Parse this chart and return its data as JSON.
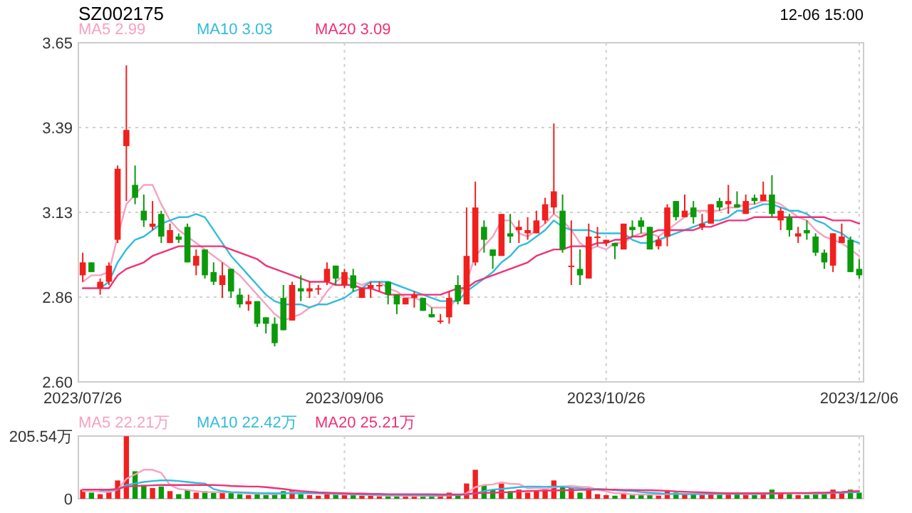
{
  "chart_data": [
    {
      "type": "candlestick",
      "title": "SZ002175",
      "annotations": [
        "12-06 15:00"
      ],
      "categories": [
        "2023/07/26",
        null,
        null,
        null,
        null,
        null,
        null,
        null,
        null,
        null,
        null,
        null,
        null,
        null,
        null,
        null,
        null,
        null,
        null,
        null,
        null,
        null,
        null,
        null,
        null,
        null,
        null,
        null,
        null,
        null,
        "2023/09/06",
        null,
        null,
        null,
        null,
        null,
        null,
        null,
        null,
        null,
        null,
        null,
        null,
        null,
        null,
        null,
        null,
        null,
        null,
        null,
        null,
        null,
        null,
        null,
        null,
        null,
        null,
        null,
        null,
        null,
        "2023/10/26",
        null,
        null,
        null,
        null,
        null,
        null,
        null,
        null,
        null,
        null,
        null,
        null,
        null,
        null,
        null,
        null,
        null,
        null,
        null,
        null,
        null,
        null,
        null,
        null,
        null,
        null,
        null,
        null,
        "2023/12/06"
      ],
      "ohlc": [
        [
          2.93,
          3.0,
          2.91,
          2.97
        ],
        [
          2.97,
          2.97,
          2.94,
          2.94
        ],
        [
          2.89,
          2.92,
          2.87,
          2.91
        ],
        [
          2.91,
          2.97,
          2.9,
          2.96
        ],
        [
          3.04,
          3.27,
          3.03,
          3.26
        ],
        [
          3.33,
          3.58,
          3.16,
          3.38
        ],
        [
          3.21,
          3.27,
          3.15,
          3.17
        ],
        [
          3.13,
          3.18,
          3.08,
          3.1
        ],
        [
          3.08,
          3.16,
          3.07,
          3.09
        ],
        [
          3.12,
          3.13,
          3.03,
          3.05
        ],
        [
          3.03,
          3.09,
          3.03,
          3.07
        ],
        [
          3.05,
          3.06,
          3.03,
          3.04
        ],
        [
          3.08,
          3.09,
          2.97,
          2.97
        ],
        [
          2.96,
          3.01,
          2.93,
          2.99
        ],
        [
          3.01,
          3.01,
          2.92,
          2.93
        ],
        [
          2.94,
          2.97,
          2.9,
          2.91
        ],
        [
          2.9,
          2.97,
          2.86,
          2.93
        ],
        [
          2.95,
          2.95,
          2.86,
          2.88
        ],
        [
          2.87,
          2.89,
          2.83,
          2.84
        ],
        [
          2.84,
          2.87,
          2.82,
          2.85
        ],
        [
          2.85,
          2.85,
          2.77,
          2.78
        ],
        [
          2.8,
          2.8,
          2.75,
          2.78
        ],
        [
          2.78,
          2.8,
          2.71,
          2.72
        ],
        [
          2.86,
          2.9,
          2.76,
          2.76
        ],
        [
          2.79,
          2.91,
          2.79,
          2.9
        ],
        [
          2.89,
          2.93,
          2.85,
          2.88
        ],
        [
          2.88,
          2.91,
          2.86,
          2.89
        ],
        [
          2.89,
          2.9,
          2.87,
          2.89
        ],
        [
          2.91,
          2.97,
          2.9,
          2.95
        ],
        [
          2.96,
          2.96,
          2.9,
          2.92
        ],
        [
          2.9,
          2.95,
          2.89,
          2.94
        ],
        [
          2.93,
          2.95,
          2.88,
          2.89
        ],
        [
          2.86,
          2.89,
          2.86,
          2.89
        ],
        [
          2.89,
          2.91,
          2.86,
          2.9
        ],
        [
          2.9,
          2.91,
          2.88,
          2.9
        ],
        [
          2.91,
          2.91,
          2.84,
          2.87
        ],
        [
          2.87,
          2.87,
          2.81,
          2.84
        ],
        [
          2.84,
          2.86,
          2.84,
          2.86
        ],
        [
          2.86,
          2.88,
          2.83,
          2.87
        ],
        [
          2.86,
          2.86,
          2.82,
          2.82
        ],
        [
          2.81,
          2.83,
          2.8,
          2.8
        ],
        [
          2.79,
          2.81,
          2.78,
          2.79
        ],
        [
          2.8,
          2.88,
          2.78,
          2.86
        ],
        [
          2.9,
          2.93,
          2.84,
          2.85
        ],
        [
          2.84,
          3.14,
          2.84,
          2.99
        ],
        [
          2.97,
          3.22,
          2.96,
          3.14
        ],
        [
          3.08,
          3.1,
          3.0,
          3.04
        ],
        [
          3.01,
          3.01,
          2.95,
          2.99
        ],
        [
          2.99,
          3.12,
          2.99,
          3.12
        ],
        [
          3.06,
          3.12,
          3.03,
          3.05
        ],
        [
          3.07,
          3.1,
          3.03,
          3.08
        ],
        [
          3.06,
          3.11,
          3.04,
          3.07
        ],
        [
          3.06,
          3.13,
          3.06,
          3.1
        ],
        [
          3.1,
          3.17,
          3.09,
          3.15
        ],
        [
          3.14,
          3.4,
          3.12,
          3.19
        ],
        [
          3.13,
          3.18,
          3.0,
          3.01
        ],
        [
          2.96,
          3.1,
          2.9,
          2.96
        ],
        [
          2.95,
          3.01,
          2.9,
          2.93
        ],
        [
          2.92,
          3.09,
          2.92,
          3.05
        ],
        [
          3.05,
          3.08,
          3.02,
          3.05
        ],
        [
          3.03,
          3.04,
          3.02,
          3.04
        ],
        [
          3.03,
          3.03,
          2.98,
          3.02
        ],
        [
          3.01,
          3.09,
          3.01,
          3.09
        ],
        [
          3.08,
          3.1,
          3.05,
          3.07
        ],
        [
          3.1,
          3.11,
          3.06,
          3.08
        ],
        [
          3.08,
          3.08,
          3.01,
          3.01
        ],
        [
          3.02,
          3.05,
          3.01,
          3.04
        ],
        [
          3.05,
          3.15,
          3.02,
          3.14
        ],
        [
          3.16,
          3.16,
          3.1,
          3.11
        ],
        [
          3.11,
          3.18,
          3.11,
          3.13
        ],
        [
          3.14,
          3.16,
          3.09,
          3.11
        ],
        [
          3.08,
          3.12,
          3.07,
          3.09
        ],
        [
          3.09,
          3.15,
          3.09,
          3.15
        ],
        [
          3.16,
          3.17,
          3.13,
          3.14
        ],
        [
          3.15,
          3.21,
          3.12,
          3.16
        ],
        [
          3.15,
          3.19,
          3.14,
          3.14
        ],
        [
          3.12,
          3.18,
          3.12,
          3.16
        ],
        [
          3.17,
          3.18,
          3.15,
          3.16
        ],
        [
          3.16,
          3.22,
          3.16,
          3.18
        ],
        [
          3.18,
          3.24,
          3.11,
          3.12
        ],
        [
          3.1,
          3.14,
          3.07,
          3.13
        ],
        [
          3.11,
          3.12,
          3.05,
          3.07
        ],
        [
          3.05,
          3.08,
          3.03,
          3.06
        ],
        [
          3.07,
          3.1,
          3.04,
          3.06
        ],
        [
          3.05,
          3.06,
          2.99,
          3.0
        ],
        [
          3.0,
          3.01,
          2.95,
          2.97
        ],
        [
          2.96,
          3.06,
          2.94,
          3.06
        ],
        [
          3.03,
          3.09,
          3.03,
          3.05
        ],
        [
          3.04,
          3.05,
          2.94,
          2.94
        ],
        [
          2.95,
          2.98,
          2.92,
          2.93
        ]
      ],
      "colors": [
        "#f0201e",
        "#0b9a0b",
        "#f0201e",
        "#f0201e",
        "#f0201e",
        "#f0201e",
        "#0b9a0b",
        "#0b9a0b",
        "#f0201e",
        "#0b9a0b",
        "#f0201e",
        "#0b9a0b",
        "#0b9a0b",
        "#f0201e",
        "#0b9a0b",
        "#0b9a0b",
        "#f0201e",
        "#0b9a0b",
        "#0b9a0b",
        "#f0201e",
        "#0b9a0b",
        "#0b9a0b",
        "#0b9a0b",
        "#0b9a0b",
        "#f0201e",
        "#0b9a0b",
        "#f0201e",
        "#f0201e",
        "#f0201e",
        "#0b9a0b",
        "#f0201e",
        "#0b9a0b",
        "#f0201e",
        "#f0201e",
        "#f0201e",
        "#0b9a0b",
        "#0b9a0b",
        "#f0201e",
        "#f0201e",
        "#0b9a0b",
        "#0b9a0b",
        "#f0201e",
        "#f0201e",
        "#0b9a0b",
        "#f0201e",
        "#f0201e",
        "#0b9a0b",
        "#0b9a0b",
        "#f0201e",
        "#0b9a0b",
        "#f0201e",
        "#f0201e",
        "#f0201e",
        "#f0201e",
        "#f0201e",
        "#0b9a0b",
        "#f0201e",
        "#0b9a0b",
        "#f0201e",
        "#f0201e",
        "#f0201e",
        "#0b9a0b",
        "#f0201e",
        "#0b9a0b",
        "#0b9a0b",
        "#0b9a0b",
        "#f0201e",
        "#f0201e",
        "#0b9a0b",
        "#f0201e",
        "#0b9a0b",
        "#f0201e",
        "#f0201e",
        "#0b9a0b",
        "#f0201e",
        "#0b9a0b",
        "#f0201e",
        "#0b9a0b",
        "#f0201e",
        "#0b9a0b",
        "#f0201e",
        "#0b9a0b",
        "#f0201e",
        "#0b9a0b",
        "#0b9a0b",
        "#0b9a0b",
        "#f0201e",
        "#f0201e",
        "#0b9a0b",
        "#0b9a0b"
      ],
      "series": [
        {
          "name": "MA5 2.99",
          "type": "line",
          "color": "#f7a1c0",
          "values": [
            2.91,
            2.93,
            2.93,
            2.94,
            3.05,
            3.15,
            3.18,
            3.21,
            3.21,
            3.15,
            3.1,
            3.07,
            3.05,
            3.03,
            3.01,
            2.99,
            2.97,
            2.95,
            2.93,
            2.9,
            2.87,
            2.84,
            2.81,
            2.79,
            2.8,
            2.81,
            2.83,
            2.84,
            2.88,
            2.91,
            2.93,
            2.91,
            2.9,
            2.91,
            2.91,
            2.89,
            2.88,
            2.86,
            2.86,
            2.85,
            2.83,
            2.83,
            2.83,
            2.86,
            2.91,
            2.99,
            3.02,
            3.05,
            3.1,
            3.1,
            3.06,
            3.05,
            3.07,
            3.09,
            3.12,
            3.1,
            3.07,
            3.03,
            3.01,
            3.02,
            3.01,
            3.03,
            3.03,
            3.05,
            3.06,
            3.06,
            3.05,
            3.07,
            3.09,
            3.11,
            3.13,
            3.13,
            3.13,
            3.13,
            3.14,
            3.14,
            3.15,
            3.15,
            3.16,
            3.16,
            3.15,
            3.13,
            3.11,
            3.1,
            3.07,
            3.05,
            3.04,
            3.03,
            3.01,
            2.99
          ]
        },
        {
          "name": "MA10 3.03",
          "type": "line",
          "color": "#33bbdd",
          "values": [
            null,
            null,
            2.89,
            2.91,
            2.97,
            3.01,
            3.04,
            3.05,
            3.07,
            3.09,
            3.1,
            3.11,
            3.11,
            3.12,
            3.11,
            3.07,
            3.03,
            2.99,
            2.96,
            2.93,
            2.9,
            2.87,
            2.85,
            2.84,
            2.84,
            2.84,
            2.83,
            2.84,
            2.84,
            2.85,
            2.86,
            2.88,
            2.89,
            2.91,
            2.91,
            2.91,
            2.9,
            2.89,
            2.88,
            2.87,
            2.86,
            2.85,
            2.85,
            2.85,
            2.88,
            2.9,
            2.92,
            2.94,
            2.97,
            2.99,
            3.02,
            3.03,
            3.05,
            3.07,
            3.1,
            3.08,
            3.07,
            3.07,
            3.07,
            3.06,
            3.06,
            3.06,
            3.06,
            3.04,
            3.03,
            3.03,
            3.04,
            3.05,
            3.06,
            3.07,
            3.08,
            3.09,
            3.1,
            3.1,
            3.11,
            3.13,
            3.13,
            3.14,
            3.15,
            3.15,
            3.14,
            3.13,
            3.13,
            3.12,
            3.1,
            3.09,
            3.07,
            3.06,
            3.04,
            3.03
          ]
        },
        {
          "name": "MA20 3.09",
          "type": "line",
          "color": "#ee3377",
          "values": [
            2.89,
            2.89,
            2.89,
            2.89,
            2.93,
            2.95,
            2.96,
            2.97,
            2.99,
            3.0,
            3.01,
            3.02,
            3.02,
            3.02,
            3.02,
            3.02,
            3.02,
            3.01,
            3.0,
            2.99,
            2.98,
            2.96,
            2.95,
            2.94,
            2.93,
            2.92,
            2.91,
            2.91,
            2.91,
            2.9,
            2.9,
            2.9,
            2.89,
            2.89,
            2.88,
            2.87,
            2.87,
            2.87,
            2.87,
            2.87,
            2.87,
            2.87,
            2.88,
            2.89,
            2.89,
            2.91,
            2.92,
            2.93,
            2.94,
            2.95,
            2.96,
            2.97,
            2.99,
            3.0,
            3.01,
            3.01,
            3.02,
            3.02,
            3.02,
            3.03,
            3.03,
            3.04,
            3.04,
            3.05,
            3.05,
            3.06,
            3.07,
            3.07,
            3.07,
            3.07,
            3.07,
            3.08,
            3.08,
            3.09,
            3.1,
            3.1,
            3.1,
            3.11,
            3.11,
            3.11,
            3.11,
            3.11,
            3.11,
            3.11,
            3.11,
            3.11,
            3.1,
            3.1,
            3.1,
            3.09
          ]
        }
      ],
      "ylim": [
        2.6,
        3.65
      ],
      "yticks": [
        {
          "value": 2.6,
          "label": "2.60"
        },
        {
          "value": 2.8625,
          "label": "2.86"
        },
        {
          "value": 3.125,
          "label": "3.13"
        },
        {
          "value": 3.3875,
          "label": "3.39"
        },
        {
          "value": 3.65,
          "label": "3.65"
        }
      ],
      "grid": true,
      "legend": "top left"
    },
    {
      "type": "bar",
      "categories": [
        "2023/07/26",
        null,
        null,
        null,
        null,
        null,
        null,
        null,
        null,
        null,
        null,
        null,
        null,
        null,
        null,
        null,
        null,
        null,
        null,
        null,
        null,
        null,
        null,
        null,
        null,
        null,
        null,
        null,
        null,
        null,
        "2023/09/06",
        null,
        null,
        null,
        null,
        null,
        null,
        null,
        null,
        null,
        null,
        null,
        null,
        null,
        null,
        null,
        null,
        null,
        null,
        null,
        null,
        null,
        null,
        null,
        null,
        null,
        null,
        null,
        null,
        null,
        "2023/10/26",
        null,
        null,
        null,
        null,
        null,
        null,
        null,
        null,
        null,
        null,
        null,
        null,
        null,
        null,
        null,
        null,
        null,
        null,
        null,
        null,
        null,
        null,
        null,
        null,
        null,
        null,
        null,
        null,
        "2023/12/06"
      ],
      "tick_labels": "y",
      "series": [
        {
          "type": "bar",
          "values": [
            30,
            20,
            15,
            25,
            60,
            205,
            90,
            45,
            35,
            40,
            25,
            15,
            30,
            20,
            25,
            20,
            20,
            20,
            15,
            12,
            18,
            12,
            20,
            25,
            30,
            15,
            12,
            10,
            20,
            15,
            15,
            12,
            10,
            10,
            8,
            10,
            10,
            8,
            8,
            10,
            8,
            8,
            20,
            15,
            50,
            95,
            45,
            30,
            50,
            25,
            30,
            20,
            25,
            30,
            60,
            40,
            35,
            20,
            35,
            15,
            12,
            10,
            20,
            12,
            12,
            15,
            10,
            25,
            20,
            15,
            15,
            12,
            20,
            15,
            20,
            15,
            15,
            12,
            20,
            30,
            20,
            15,
            12,
            12,
            20,
            20,
            30,
            20,
            30,
            20
          ],
          "colors": [
            "#f0201e",
            "#0b9a0b",
            "#f0201e",
            "#f0201e",
            "#f0201e",
            "#f0201e",
            "#0b9a0b",
            "#0b9a0b",
            "#f0201e",
            "#0b9a0b",
            "#f0201e",
            "#0b9a0b",
            "#0b9a0b",
            "#f0201e",
            "#0b9a0b",
            "#0b9a0b",
            "#f0201e",
            "#0b9a0b",
            "#0b9a0b",
            "#f0201e",
            "#0b9a0b",
            "#0b9a0b",
            "#0b9a0b",
            "#0b9a0b",
            "#f0201e",
            "#0b9a0b",
            "#f0201e",
            "#f0201e",
            "#f0201e",
            "#0b9a0b",
            "#f0201e",
            "#0b9a0b",
            "#f0201e",
            "#f0201e",
            "#f0201e",
            "#0b9a0b",
            "#0b9a0b",
            "#f0201e",
            "#f0201e",
            "#0b9a0b",
            "#0b9a0b",
            "#f0201e",
            "#f0201e",
            "#0b9a0b",
            "#f0201e",
            "#f0201e",
            "#0b9a0b",
            "#0b9a0b",
            "#f0201e",
            "#0b9a0b",
            "#f0201e",
            "#f0201e",
            "#f0201e",
            "#f0201e",
            "#f0201e",
            "#0b9a0b",
            "#f0201e",
            "#0b9a0b",
            "#f0201e",
            "#f0201e",
            "#f0201e",
            "#0b9a0b",
            "#f0201e",
            "#0b9a0b",
            "#0b9a0b",
            "#0b9a0b",
            "#f0201e",
            "#f0201e",
            "#0b9a0b",
            "#f0201e",
            "#0b9a0b",
            "#f0201e",
            "#f0201e",
            "#0b9a0b",
            "#f0201e",
            "#0b9a0b",
            "#f0201e",
            "#0b9a0b",
            "#f0201e",
            "#0b9a0b",
            "#f0201e",
            "#0b9a0b",
            "#f0201e",
            "#0b9a0b",
            "#0b9a0b",
            "#0b9a0b",
            "#f0201e",
            "#f0201e",
            "#0b9a0b",
            "#0b9a0b"
          ]
        },
        {
          "name": "MA5 22.21万",
          "type": "line",
          "color": "#f7a1c0",
          "values": [
            25,
            25,
            24,
            22,
            30,
            65,
            80,
            95,
            95,
            85,
            45,
            32,
            29,
            25,
            22,
            22,
            21,
            21,
            19,
            17,
            17,
            15,
            15,
            17,
            21,
            20,
            20,
            18,
            17,
            15,
            14,
            14,
            14,
            12,
            11,
            10,
            10,
            9,
            9,
            9,
            9,
            9,
            11,
            12,
            18,
            38,
            45,
            47,
            54,
            49,
            48,
            34,
            36,
            32,
            38,
            40,
            42,
            39,
            38,
            30,
            24,
            18,
            18,
            14,
            14,
            14,
            14,
            15,
            16,
            17,
            17,
            17,
            16,
            15,
            16,
            16,
            15,
            15,
            16,
            18,
            19,
            19,
            18,
            17,
            16,
            17,
            19,
            21,
            24,
            22
          ]
        },
        {
          "name": "MA10 22.42万",
          "type": "line",
          "color": "#33bbdd",
          "values": [
            null,
            null,
            28,
            28,
            30,
            45,
            50,
            55,
            58,
            60,
            60,
            58,
            55,
            52,
            50,
            32,
            25,
            22,
            21,
            20,
            19,
            18,
            18,
            18,
            18,
            18,
            18,
            18,
            17,
            17,
            16,
            15,
            14,
            14,
            13,
            13,
            13,
            12,
            12,
            12,
            11,
            11,
            12,
            12,
            14,
            18,
            25,
            30,
            32,
            35,
            38,
            40,
            40,
            39,
            40,
            40,
            36,
            34,
            31,
            32,
            31,
            28,
            26,
            25,
            22,
            20,
            18,
            16,
            16,
            15,
            15,
            15,
            16,
            16,
            16,
            16,
            16,
            16,
            16,
            17,
            17,
            null,
            18,
            18,
            18,
            18,
            19,
            20,
            21,
            22
          ]
        },
        {
          "name": "MA20 25.21万",
          "type": "line",
          "color": "#ee3377",
          "values": [
            30,
            30,
            30,
            30,
            32,
            40,
            42,
            43,
            44,
            45,
            45,
            45,
            45,
            45,
            45,
            45,
            44,
            42,
            41,
            40,
            40,
            38,
            35,
            32,
            28,
            25,
            23,
            21,
            20,
            19,
            18,
            17,
            17,
            16,
            16,
            15,
            15,
            15,
            15,
            15,
            15,
            14,
            14,
            14,
            15,
            18,
            19,
            20,
            21,
            22,
            24,
            25,
            26,
            27,
            27,
            28,
            28,
            29,
            29,
            30,
            30,
            30,
            29,
            29,
            28,
            28,
            27,
            26,
            24,
            23,
            22,
            21,
            20,
            19,
            18,
            18,
            18,
            18,
            18,
            18,
            18,
            18,
            19,
            19,
            20,
            20,
            21,
            22,
            24,
            25
          ]
        }
      ],
      "ylim": [
        0,
        205.54
      ],
      "yticks": [
        0,
        {
          "value": 205.54,
          "label": "205.54万"
        }
      ],
      "grid": true,
      "legend": "top left"
    }
  ]
}
